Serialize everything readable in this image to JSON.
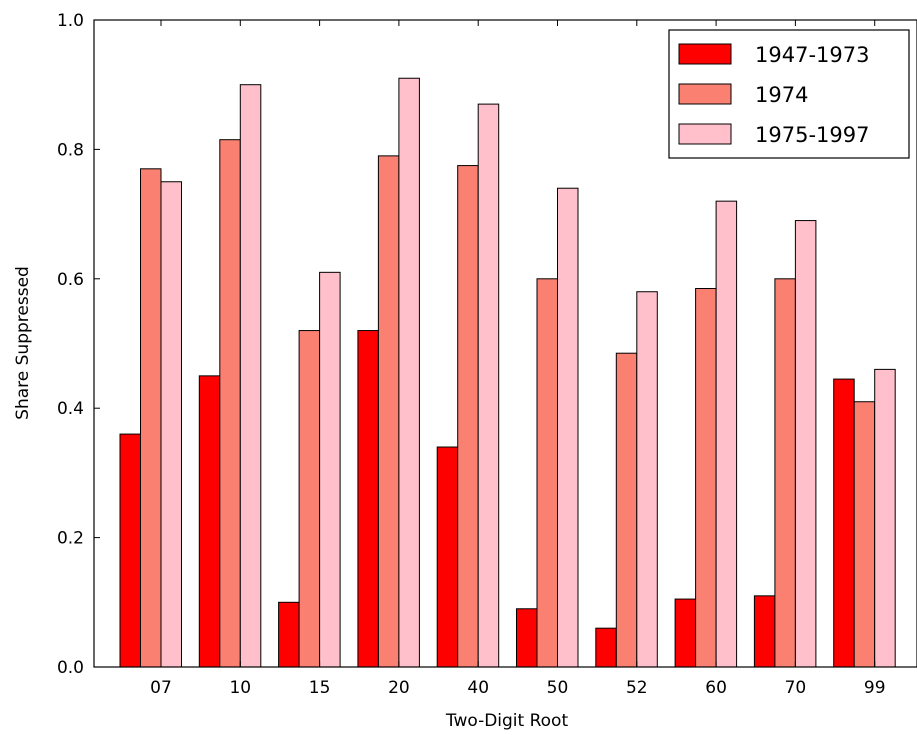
{
  "chart_data": {
    "type": "bar",
    "title": "",
    "xlabel": "Two-Digit Root",
    "ylabel": "Share Suppressed",
    "ylim": [
      0.0,
      1.0
    ],
    "yticks": [
      "0.0",
      "0.2",
      "0.4",
      "0.6",
      "0.8",
      "1.0"
    ],
    "categories": [
      "07",
      "10",
      "15",
      "20",
      "40",
      "50",
      "52",
      "60",
      "70",
      "99"
    ],
    "series": [
      {
        "name": "1947-1973",
        "color": "#ff0000",
        "values": [
          0.36,
          0.45,
          0.1,
          0.52,
          0.34,
          0.09,
          0.06,
          0.105,
          0.11,
          0.445
        ]
      },
      {
        "name": "1974",
        "color": "#fa8072",
        "values": [
          0.77,
          0.815,
          0.52,
          0.79,
          0.775,
          0.6,
          0.485,
          0.585,
          0.6,
          0.41
        ]
      },
      {
        "name": "1975-1997",
        "color": "#ffc0cb",
        "values": [
          0.75,
          0.9,
          0.61,
          0.91,
          0.87,
          0.74,
          0.58,
          0.72,
          0.69,
          0.46
        ]
      }
    ],
    "legend_position": "top-right",
    "grid": false
  }
}
